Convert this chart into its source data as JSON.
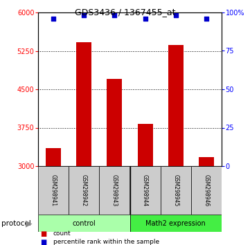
{
  "title": "GDS3436 / 1367455_at",
  "samples": [
    "GSM298941",
    "GSM298942",
    "GSM298943",
    "GSM298944",
    "GSM298945",
    "GSM298946"
  ],
  "counts": [
    3350,
    5420,
    4700,
    3820,
    5370,
    3170
  ],
  "percentile_ranks": [
    96,
    98,
    98,
    96,
    98,
    96
  ],
  "ylim_left": [
    3000,
    6000
  ],
  "ylim_right": [
    0,
    100
  ],
  "yticks_left": [
    3000,
    3750,
    4500,
    5250,
    6000
  ],
  "yticks_right": [
    0,
    25,
    50,
    75,
    100
  ],
  "ytick_labels_right": [
    "0",
    "25",
    "50",
    "75",
    "100%"
  ],
  "bar_color": "#cc0000",
  "dot_color": "#0000cc",
  "group_control_color": "#aaffaa",
  "group_math2_color": "#44ee44",
  "protocol_label": "protocol",
  "legend_count_label": "count",
  "legend_percentile_label": "percentile rank within the sample"
}
